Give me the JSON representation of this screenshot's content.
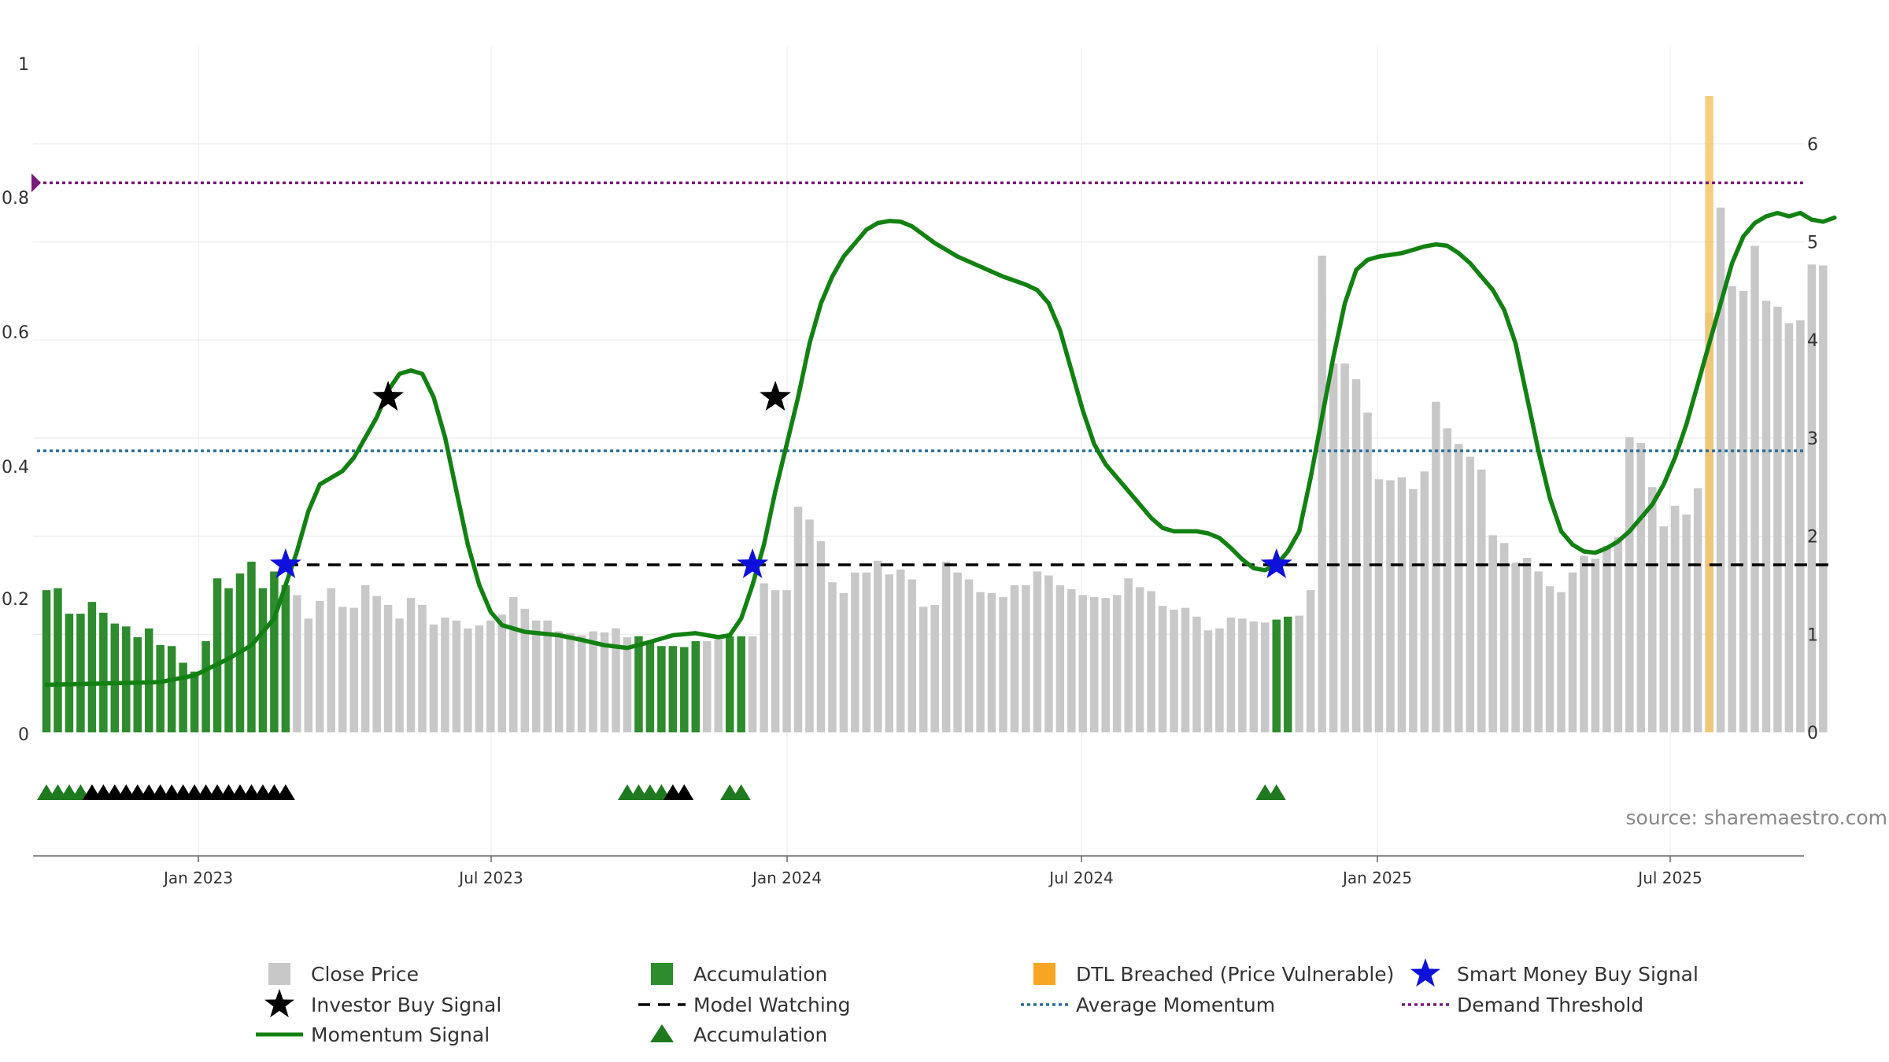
{
  "source_text": "source: sharemaestro.com",
  "colors": {
    "close": "#c8c8c8",
    "accum_bar": "#2e8b2e",
    "dtl": "#f6c56b",
    "momentum": "#128112",
    "model_watching": "#000000",
    "avg_momentum": "#2c6f9a",
    "demand": "#7a1a7a",
    "smart_star": "#1010dd",
    "investor_star": "#000000",
    "accum_tri": "#1f7a1f"
  },
  "chart_data": {
    "type": "bar",
    "left_axis": {
      "ticks": [
        "0",
        "0.2",
        "0.4",
        "0.6",
        "0.8",
        "1"
      ],
      "range": [
        0,
        1
      ]
    },
    "right_axis": {
      "ticks": [
        "0",
        "1",
        "2",
        "3",
        "4",
        "5",
        "6"
      ],
      "range": [
        0,
        6.5
      ]
    },
    "x_ticks": [
      "Jan 2023",
      "Jul 2023",
      "Jan 2024",
      "Jul 2024",
      "Jan 2025",
      "Jul 2025"
    ],
    "close_price": [
      1.45,
      1.47,
      1.21,
      1.21,
      1.33,
      1.22,
      1.11,
      1.08,
      0.97,
      1.06,
      0.89,
      0.88,
      0.71,
      0.62,
      0.93,
      1.57,
      1.47,
      1.62,
      1.74,
      1.47,
      1.64,
      1.5,
      1.4,
      1.16,
      1.34,
      1.47,
      1.28,
      1.27,
      1.5,
      1.39,
      1.3,
      1.16,
      1.37,
      1.3,
      1.1,
      1.17,
      1.14,
      1.06,
      1.09,
      1.14,
      1.2,
      1.38,
      1.26,
      1.14,
      1.14,
      1.03,
      1.01,
      0.99,
      1.03,
      1.02,
      1.06,
      0.97,
      0.98,
      0.91,
      0.88,
      0.88,
      0.87,
      0.93,
      0.93,
      0.95,
      0.98,
      0.98,
      0.98,
      1.52,
      1.45,
      1.45,
      2.3,
      2.17,
      1.95,
      1.53,
      1.42,
      1.63,
      1.63,
      1.75,
      1.61,
      1.66,
      1.56,
      1.28,
      1.3,
      1.74,
      1.63,
      1.56,
      1.43,
      1.42,
      1.38,
      1.5,
      1.5,
      1.64,
      1.6,
      1.5,
      1.46,
      1.4,
      1.38,
      1.37,
      1.4,
      1.57,
      1.48,
      1.44,
      1.29,
      1.25,
      1.27,
      1.18,
      1.04,
      1.06,
      1.17,
      1.16,
      1.13,
      1.12,
      1.15,
      1.18,
      1.19,
      1.45,
      4.86,
      3.76,
      3.76,
      3.6,
      3.26,
      2.58,
      2.57,
      2.6,
      2.48,
      2.66,
      3.37,
      3.1,
      2.94,
      2.81,
      2.68,
      2.01,
      1.93,
      1.73,
      1.78,
      1.64,
      1.49,
      1.43,
      1.63,
      1.8,
      1.77,
      1.9,
      1.99,
      3.01,
      2.95,
      2.5,
      2.1,
      2.31,
      2.22,
      2.49,
      4.28,
      5.35,
      4.55,
      4.5,
      4.96,
      4.4,
      4.34,
      4.17,
      4.2,
      4.77,
      4.76
    ],
    "accumulation_bars": [
      0,
      1,
      2,
      3,
      4,
      5,
      6,
      7,
      8,
      9,
      10,
      11,
      12,
      13,
      14,
      15,
      16,
      17,
      18,
      19,
      20,
      21,
      52,
      53,
      54,
      55,
      56,
      57,
      60,
      61,
      108,
      109
    ],
    "dtl_breached_bar": 146,
    "momentum": [
      [
        0,
        0.071
      ],
      [
        5,
        0.073
      ],
      [
        10,
        0.075
      ],
      [
        13,
        0.085
      ],
      [
        16,
        0.11
      ],
      [
        18,
        0.13
      ],
      [
        20,
        0.17
      ],
      [
        21,
        0.22
      ],
      [
        22,
        0.27
      ],
      [
        23,
        0.33
      ],
      [
        24,
        0.37
      ],
      [
        26,
        0.39
      ],
      [
        27,
        0.41
      ],
      [
        28,
        0.44
      ],
      [
        29,
        0.47
      ],
      [
        30,
        0.51
      ],
      [
        31,
        0.535
      ],
      [
        32,
        0.54
      ],
      [
        33,
        0.535
      ],
      [
        34,
        0.5
      ],
      [
        35,
        0.44
      ],
      [
        36,
        0.36
      ],
      [
        37,
        0.28
      ],
      [
        38,
        0.22
      ],
      [
        39,
        0.18
      ],
      [
        40,
        0.16
      ],
      [
        42,
        0.15
      ],
      [
        45,
        0.145
      ],
      [
        47,
        0.138
      ],
      [
        49,
        0.13
      ],
      [
        51,
        0.126
      ],
      [
        53,
        0.135
      ],
      [
        55,
        0.145
      ],
      [
        57,
        0.148
      ],
      [
        59,
        0.142
      ],
      [
        60,
        0.145
      ],
      [
        61,
        0.17
      ],
      [
        62,
        0.22
      ],
      [
        63,
        0.28
      ],
      [
        64,
        0.36
      ],
      [
        65,
        0.43
      ],
      [
        66,
        0.5
      ],
      [
        67,
        0.58
      ],
      [
        68,
        0.64
      ],
      [
        69,
        0.68
      ],
      [
        70,
        0.71
      ],
      [
        72,
        0.75
      ],
      [
        73,
        0.76
      ],
      [
        74,
        0.763
      ],
      [
        75,
        0.762
      ],
      [
        76,
        0.755
      ],
      [
        78,
        0.73
      ],
      [
        80,
        0.71
      ],
      [
        82,
        0.695
      ],
      [
        84,
        0.68
      ],
      [
        86,
        0.668
      ],
      [
        87,
        0.66
      ],
      [
        88,
        0.64
      ],
      [
        89,
        0.6
      ],
      [
        90,
        0.54
      ],
      [
        91,
        0.48
      ],
      [
        92,
        0.43
      ],
      [
        93,
        0.4
      ],
      [
        95,
        0.36
      ],
      [
        97,
        0.32
      ],
      [
        98,
        0.305
      ],
      [
        99,
        0.3
      ],
      [
        101,
        0.3
      ],
      [
        102,
        0.297
      ],
      [
        103,
        0.29
      ],
      [
        104,
        0.275
      ],
      [
        105,
        0.258
      ],
      [
        106,
        0.245
      ],
      [
        107,
        0.242
      ],
      [
        108,
        0.25
      ],
      [
        109,
        0.27
      ],
      [
        110,
        0.3
      ],
      [
        111,
        0.38
      ],
      [
        112,
        0.47
      ],
      [
        113,
        0.56
      ],
      [
        114,
        0.64
      ],
      [
        115,
        0.69
      ],
      [
        116,
        0.705
      ],
      [
        117,
        0.71
      ],
      [
        119,
        0.715
      ],
      [
        120,
        0.72
      ],
      [
        121,
        0.725
      ],
      [
        122,
        0.728
      ],
      [
        123,
        0.726
      ],
      [
        124,
        0.715
      ],
      [
        125,
        0.7
      ],
      [
        126,
        0.68
      ],
      [
        127,
        0.66
      ],
      [
        128,
        0.63
      ],
      [
        129,
        0.58
      ],
      [
        130,
        0.5
      ],
      [
        131,
        0.42
      ],
      [
        132,
        0.35
      ],
      [
        133,
        0.3
      ],
      [
        134,
        0.28
      ],
      [
        135,
        0.27
      ],
      [
        136,
        0.268
      ],
      [
        137,
        0.275
      ],
      [
        138,
        0.285
      ],
      [
        139,
        0.3
      ],
      [
        140,
        0.32
      ],
      [
        141,
        0.34
      ],
      [
        142,
        0.37
      ],
      [
        143,
        0.41
      ],
      [
        144,
        0.46
      ],
      [
        145,
        0.52
      ],
      [
        146,
        0.58
      ],
      [
        147,
        0.64
      ],
      [
        148,
        0.7
      ],
      [
        149,
        0.74
      ],
      [
        150,
        0.76
      ],
      [
        151,
        0.77
      ],
      [
        152,
        0.775
      ],
      [
        153,
        0.77
      ],
      [
        154,
        0.775
      ],
      [
        155,
        0.765
      ],
      [
        156,
        0.762
      ],
      [
        157,
        0.768
      ]
    ],
    "model_watching_level": 0.25,
    "model_watching_range": [
      21,
      157
    ],
    "average_momentum": 0.42,
    "demand_threshold": 0.82,
    "smart_money_buy": [
      [
        21,
        0.25
      ],
      [
        62,
        0.25
      ],
      [
        108,
        0.25
      ]
    ],
    "investor_buy": [
      [
        30,
        0.5
      ],
      [
        64,
        0.5
      ]
    ],
    "accumulation_triangles": [
      {
        "i": 0,
        "c": "g"
      },
      {
        "i": 1,
        "c": "g"
      },
      {
        "i": 2,
        "c": "g"
      },
      {
        "i": 3,
        "c": "g"
      },
      {
        "i": 4,
        "c": "k"
      },
      {
        "i": 5,
        "c": "k"
      },
      {
        "i": 6,
        "c": "k"
      },
      {
        "i": 7,
        "c": "k"
      },
      {
        "i": 8,
        "c": "k"
      },
      {
        "i": 9,
        "c": "k"
      },
      {
        "i": 10,
        "c": "k"
      },
      {
        "i": 11,
        "c": "k"
      },
      {
        "i": 12,
        "c": "k"
      },
      {
        "i": 13,
        "c": "k"
      },
      {
        "i": 14,
        "c": "k"
      },
      {
        "i": 15,
        "c": "k"
      },
      {
        "i": 16,
        "c": "k"
      },
      {
        "i": 17,
        "c": "k"
      },
      {
        "i": 18,
        "c": "k"
      },
      {
        "i": 19,
        "c": "k"
      },
      {
        "i": 20,
        "c": "k"
      },
      {
        "i": 21,
        "c": "k"
      },
      {
        "i": 51,
        "c": "g"
      },
      {
        "i": 52,
        "c": "g"
      },
      {
        "i": 53,
        "c": "g"
      },
      {
        "i": 54,
        "c": "g"
      },
      {
        "i": 55,
        "c": "k"
      },
      {
        "i": 56,
        "c": "k"
      },
      {
        "i": 60,
        "c": "g"
      },
      {
        "i": 61,
        "c": "g"
      },
      {
        "i": 107,
        "c": "g"
      },
      {
        "i": 108,
        "c": "g"
      }
    ],
    "legend": [
      {
        "label": "Close Price",
        "kind": "square",
        "color": "#c8c8c8"
      },
      {
        "label": "Accumulation",
        "kind": "square",
        "color": "#2e8b2e"
      },
      {
        "label": "DTL Breached (Price Vulnerable)",
        "kind": "square",
        "color": "#f6a623"
      },
      {
        "label": "Smart Money Buy Signal",
        "kind": "star",
        "color": "#1010dd"
      },
      {
        "label": "Investor Buy Signal",
        "kind": "star",
        "color": "#000000"
      },
      {
        "label": "Model Watching",
        "kind": "dash",
        "color": "#000000"
      },
      {
        "label": "Average Momentum",
        "kind": "dot",
        "color": "#2c6f9a"
      },
      {
        "label": "Demand Threshold",
        "kind": "dot",
        "color": "#7a1a7a"
      },
      {
        "label": "Momentum Signal",
        "kind": "line",
        "color": "#128112"
      },
      {
        "label": "Accumulation",
        "kind": "triangle",
        "color": "#1f7a1f"
      }
    ]
  }
}
